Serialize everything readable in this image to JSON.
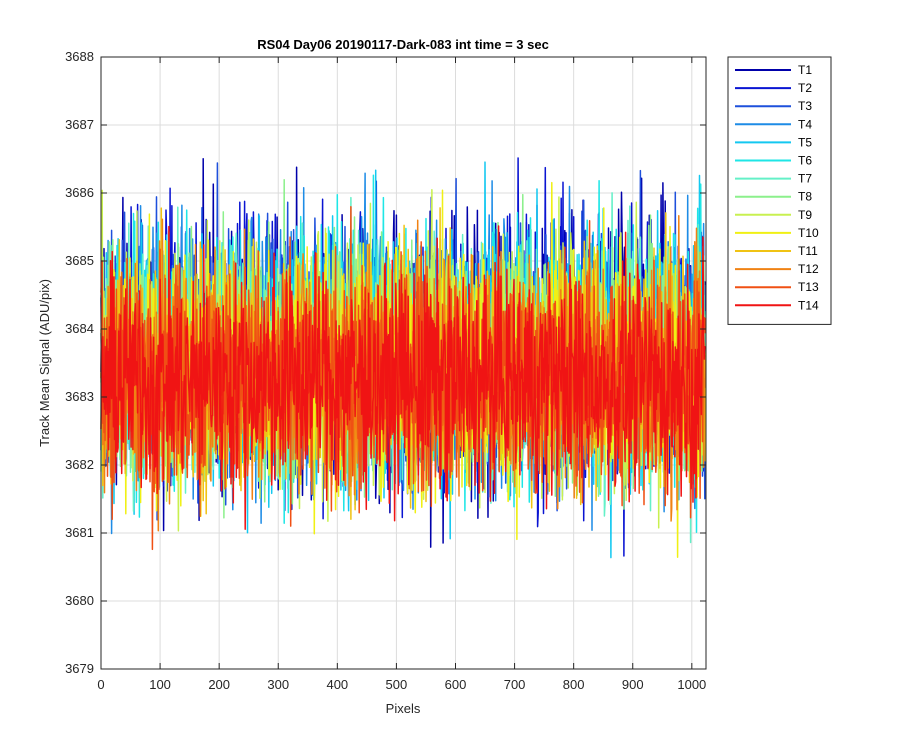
{
  "chart_data": {
    "type": "line",
    "title": "RS04 Day06 20190117-Dark-083 int time = 3 sec",
    "xlabel": "Pixels",
    "ylabel": "Track Mean Signal (ADU/pix)",
    "xlim": [
      0,
      1024
    ],
    "ylim": [
      3679,
      3688
    ],
    "xticks": [
      "0",
      "100",
      "200",
      "300",
      "400",
      "500",
      "600",
      "700",
      "800",
      "900",
      "1000"
    ],
    "yticks": [
      "3679",
      "3680",
      "3681",
      "3682",
      "3683",
      "3684",
      "3685",
      "3686",
      "3687",
      "3688"
    ],
    "grid": true,
    "legend_position": "outside-top-right",
    "series": [
      {
        "name": "T1",
        "color": "#0000aa",
        "mean": 3683.7,
        "sd": 1.0
      },
      {
        "name": "T2",
        "color": "#0a14d2",
        "mean": 3683.65,
        "sd": 1.0
      },
      {
        "name": "T3",
        "color": "#1e50dc",
        "mean": 3683.65,
        "sd": 0.95
      },
      {
        "name": "T4",
        "color": "#1e8ce6",
        "mean": 3683.6,
        "sd": 0.95
      },
      {
        "name": "T5",
        "color": "#14c8f0",
        "mean": 3683.6,
        "sd": 0.95
      },
      {
        "name": "T6",
        "color": "#1ee6e6",
        "mean": 3683.6,
        "sd": 0.95
      },
      {
        "name": "T7",
        "color": "#64f0c8",
        "mean": 3683.55,
        "sd": 0.9
      },
      {
        "name": "T8",
        "color": "#8cf08c",
        "mean": 3683.55,
        "sd": 0.9
      },
      {
        "name": "T9",
        "color": "#c8f050",
        "mean": 3683.5,
        "sd": 0.9
      },
      {
        "name": "T10",
        "color": "#f0f014",
        "mean": 3683.45,
        "sd": 0.9
      },
      {
        "name": "T11",
        "color": "#f0c314",
        "mean": 3683.4,
        "sd": 0.85
      },
      {
        "name": "T12",
        "color": "#f08214",
        "mean": 3683.35,
        "sd": 0.85
      },
      {
        "name": "T13",
        "color": "#f05014",
        "mean": 3683.3,
        "sd": 0.85
      },
      {
        "name": "T14",
        "color": "#f01414",
        "mean": 3683.25,
        "sd": 0.8
      }
    ],
    "pixel_count": 1024
  }
}
